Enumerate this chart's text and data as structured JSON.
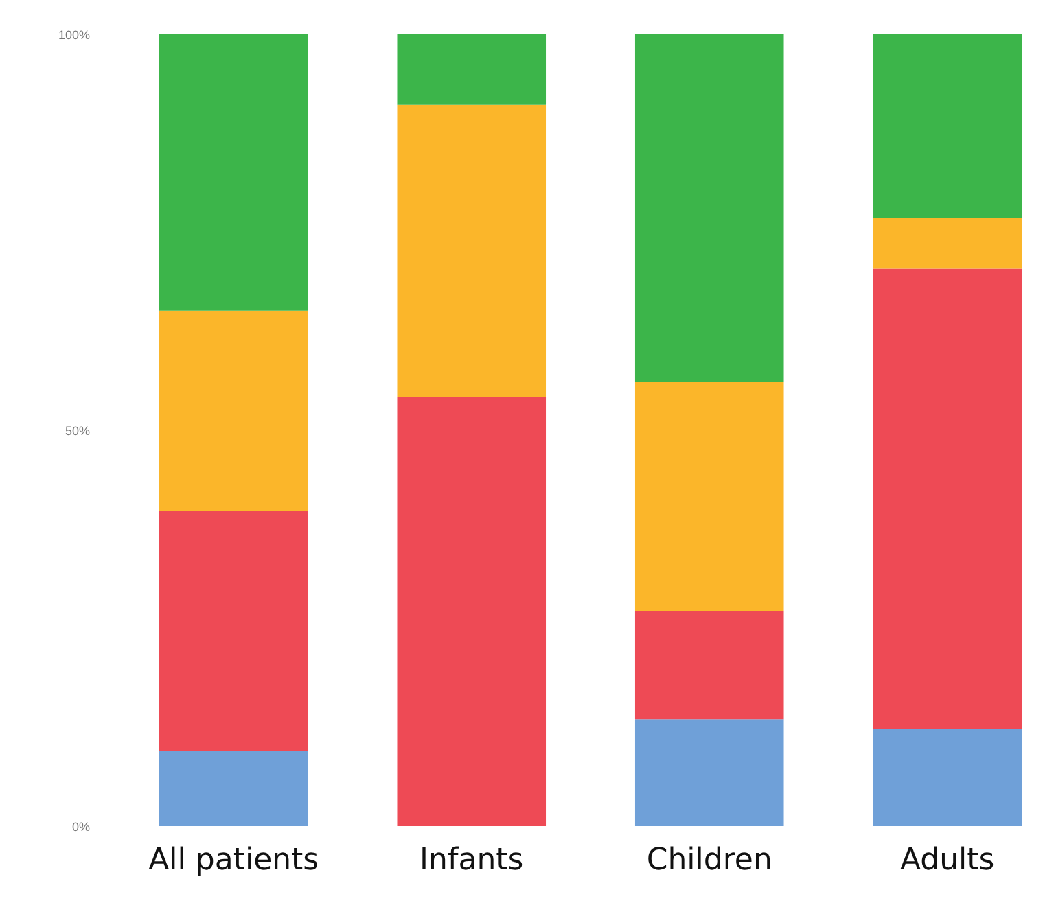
{
  "chart_data": {
    "type": "bar",
    "stacked": true,
    "categories": [
      "All patients",
      "Infants",
      "Children",
      "Adults"
    ],
    "series": [
      {
        "color": "#6fa0d8",
        "values": [
          9.5,
          0,
          13.5,
          12.3
        ]
      },
      {
        "color": "#ee4a55",
        "values": [
          30.3,
          54.2,
          13.7,
          58.1
        ]
      },
      {
        "color": "#fbb62a",
        "values": [
          25.3,
          36.9,
          28.9,
          6.4
        ]
      },
      {
        "color": "#3cb54a",
        "values": [
          34.9,
          8.9,
          43.9,
          23.2
        ]
      }
    ],
    "ylim": [
      0,
      100
    ],
    "yticks": [
      {
        "value": 0,
        "label": "0%"
      },
      {
        "value": 50,
        "label": "50%"
      },
      {
        "value": 100,
        "label": "100%"
      }
    ]
  }
}
